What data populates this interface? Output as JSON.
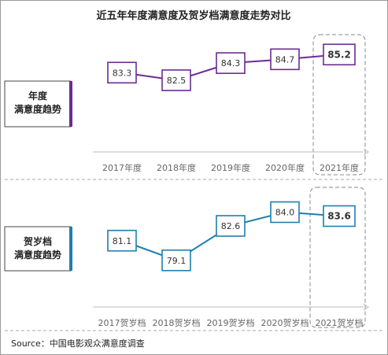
{
  "title": "近五年年度满意度及贺岁档满意度走势对比",
  "source": "Source：中国电影观众满意度调查",
  "colors": {
    "annual": "#6a2c91",
    "newyear": "#1f7fae",
    "frame": "#999999",
    "axis": "#bbbbbb"
  },
  "chart_data": [
    {
      "type": "line",
      "side_label": [
        "年度",
        "满意度趋势"
      ],
      "categories": [
        "2017年度",
        "2018年度",
        "2019年度",
        "2020年度",
        "2021年度"
      ],
      "series": [
        {
          "values": [
            83.3,
            82.5,
            84.3,
            84.7,
            85.2
          ]
        }
      ],
      "highlight_index": 4,
      "ylim": [
        82.0,
        85.8
      ]
    },
    {
      "type": "line",
      "side_label": [
        "贺岁档",
        "满意度趋势"
      ],
      "categories": [
        "2017贺岁档",
        "2018贺岁档",
        "2019贺岁档",
        "2020贺岁档",
        "2021贺岁档"
      ],
      "series": [
        {
          "values": [
            81.1,
            79.1,
            82.6,
            84.0,
            83.6
          ]
        }
      ],
      "highlight_index": 4,
      "ylim": [
        78.2,
        84.6
      ]
    }
  ]
}
